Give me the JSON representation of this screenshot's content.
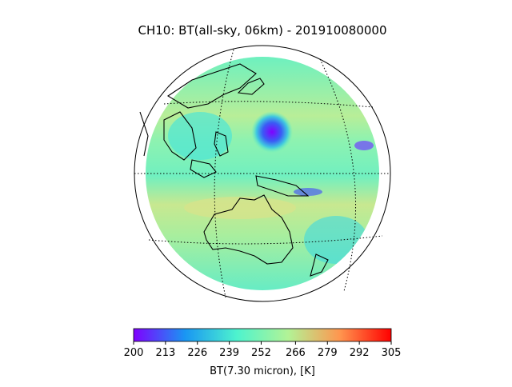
{
  "title": "CH10: BT(all-sky, 06km) - 201910080000",
  "colorbar": {
    "label": "BT(7.30 micron), [K]",
    "clim": [
      200,
      305
    ],
    "ticks": [
      200,
      213,
      226,
      239,
      252,
      266,
      279,
      292,
      305
    ],
    "colormap": [
      "#8000ff",
      "#1996f3",
      "#4df3ce",
      "#b2f396",
      "#ff964f",
      "#ff0000"
    ]
  }
}
